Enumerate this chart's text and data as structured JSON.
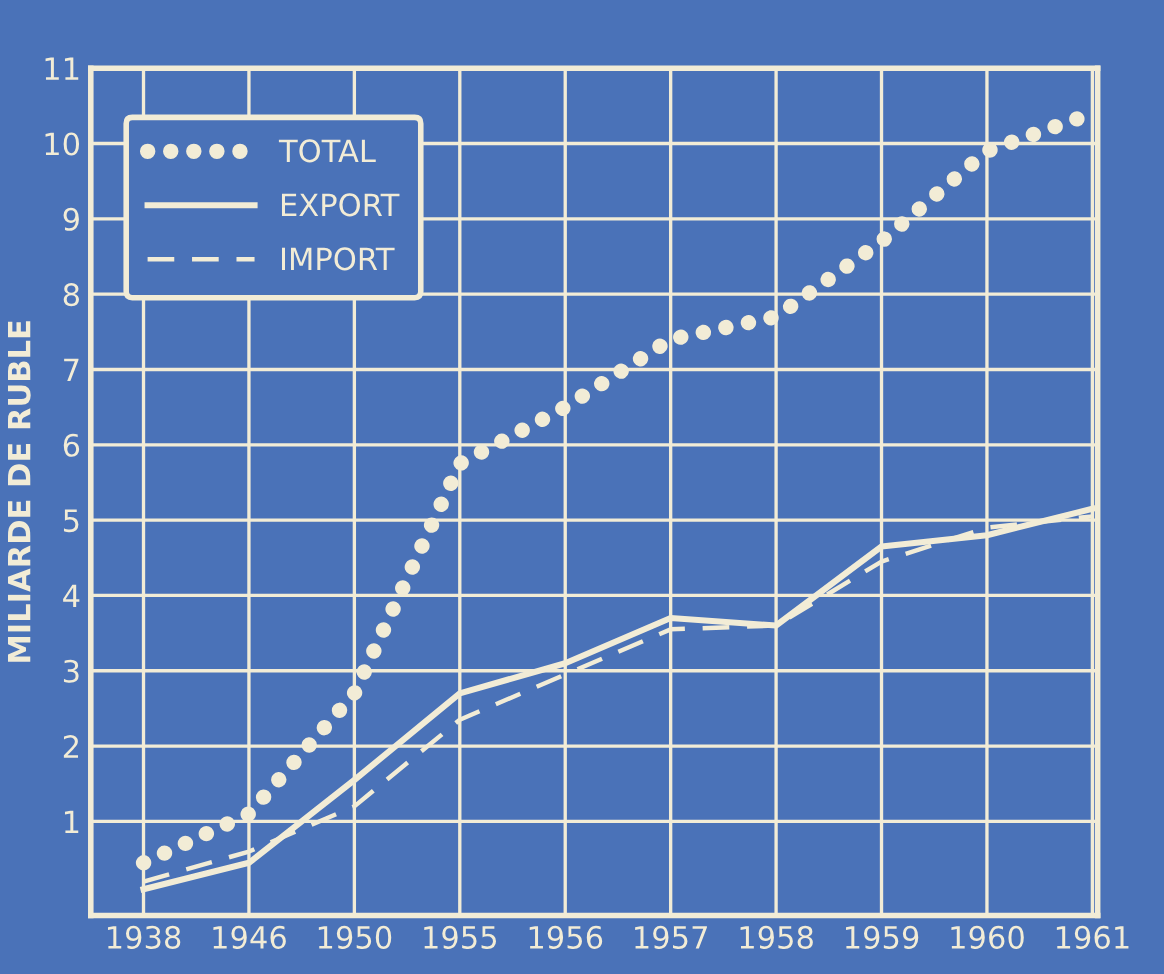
{
  "chart_data": {
    "type": "line",
    "ylabel": "MILIARDE DE RUBLE",
    "categories": [
      "1938",
      "1946",
      "1950",
      "1955",
      "1956",
      "1957",
      "1958",
      "1959",
      "1960",
      "1961"
    ],
    "series": [
      {
        "name": "TOTAL",
        "color": "#f2ecd6",
        "line_style": "dotted",
        "values": [
          0.45,
          1.1,
          2.7,
          5.75,
          6.5,
          7.4,
          7.7,
          8.7,
          9.9,
          10.4
        ]
      },
      {
        "name": "EXPORT",
        "color": "#f2ecd6",
        "line_style": "solid",
        "values": [
          0.1,
          0.45,
          1.55,
          2.7,
          3.1,
          3.7,
          3.6,
          4.65,
          4.8,
          5.15
        ]
      },
      {
        "name": "IMPORT",
        "color": "#f2ecd6",
        "line_style": "dashed",
        "values": [
          0.2,
          0.6,
          1.2,
          2.35,
          2.95,
          3.55,
          3.6,
          4.45,
          4.9,
          5.05
        ]
      }
    ],
    "ylim": [
      -0.25,
      11
    ],
    "yticks": [
      1,
      2,
      3,
      4,
      5,
      6,
      7,
      8,
      9,
      10,
      11
    ],
    "grid": true,
    "legend": "top left"
  }
}
